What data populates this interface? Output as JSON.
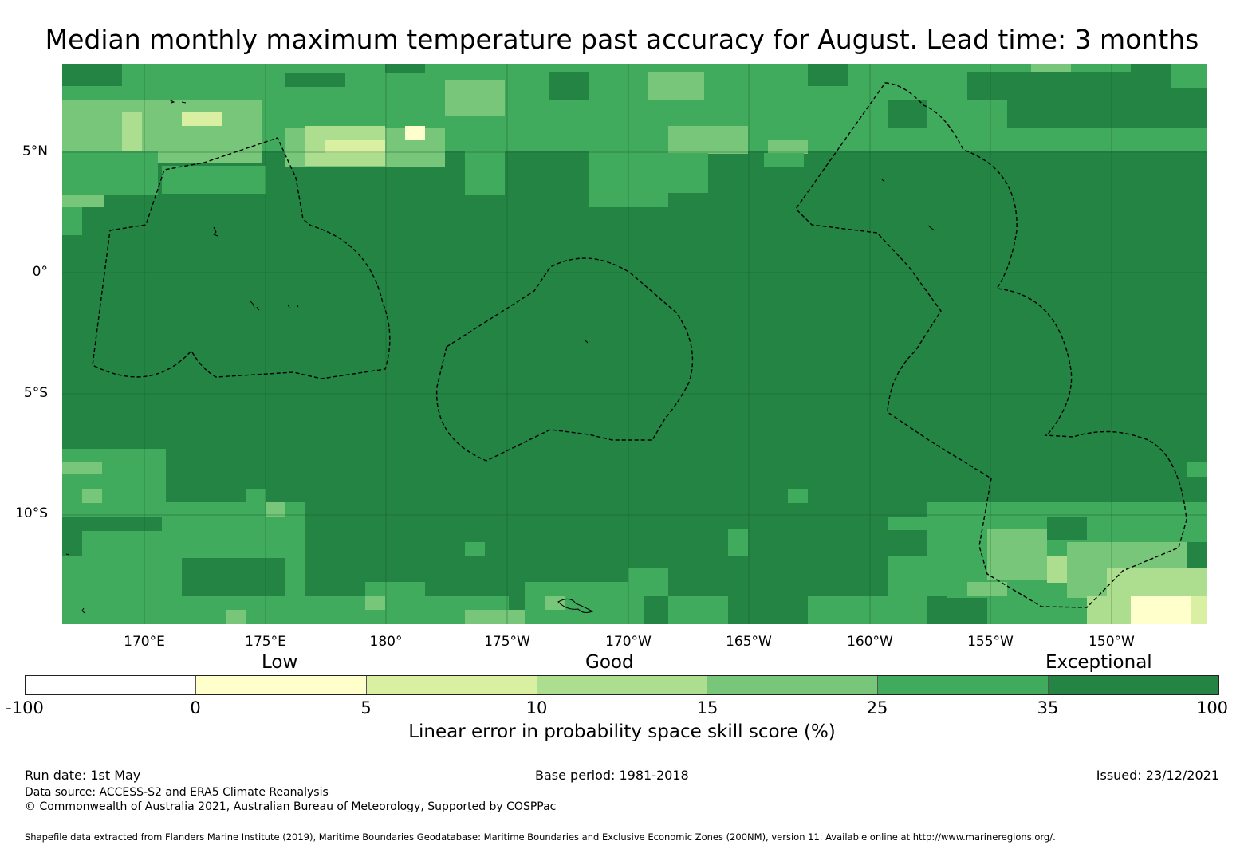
{
  "title": "Median monthly maximum temperature past accuracy for August. Lead time: 3 months",
  "map": {
    "lat_labels": [
      "5°N",
      "0°",
      "5°S",
      "10°S"
    ],
    "lon_labels": [
      "170°E",
      "175°E",
      "180°",
      "175°W",
      "170°W",
      "165°W",
      "160°W",
      "155°W",
      "150°W"
    ]
  },
  "colorbar": {
    "categories": [
      "Low",
      "Good",
      "Exceptional"
    ],
    "ticks": [
      "-100",
      "0",
      "5",
      "10",
      "15",
      "25",
      "35",
      "100"
    ],
    "colors": [
      "#ffffff",
      "#ffffcc",
      "#d9f0a3",
      "#addd8e",
      "#78c679",
      "#41ab5d",
      "#238443"
    ],
    "label": "Linear error in probability space skill score (%)"
  },
  "footer": {
    "run_date": "Run date: 1st May",
    "base_period": "Base period: 1981-2018",
    "issued": "Issued: 23/12/2021",
    "data_source": "Data source: ACCESS-S2 and ERA5 Climate Reanalysis",
    "copyright": "© Commonwealth of Australia 2021, Australian Bureau of Meteorology, Supported by COSPPac",
    "shapefile": "Shapefile data extracted from Flanders Marine Institute (2019), Maritime Boundaries Geodatabase: Maritime Boundaries and Exclusive Economic Zones (200NM), version 11. Available online at http://www.marineregions.org/."
  }
}
